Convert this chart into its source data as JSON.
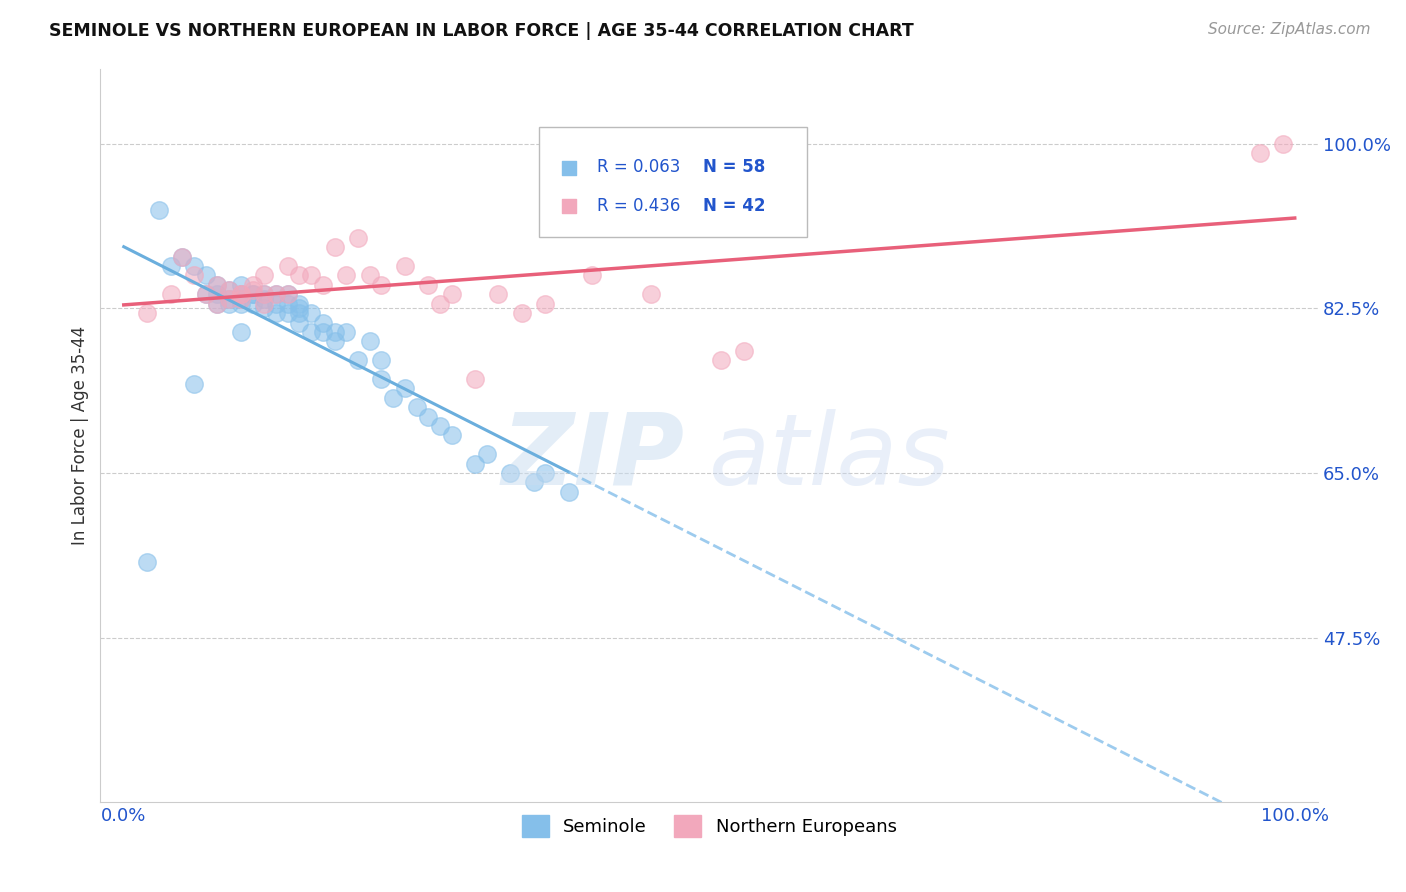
{
  "title": "SEMINOLE VS NORTHERN EUROPEAN IN LABOR FORCE | AGE 35-44 CORRELATION CHART",
  "source": "Source: ZipAtlas.com",
  "ylabel": "In Labor Force | Age 35-44",
  "xlim": [
    -0.02,
    1.02
  ],
  "ylim": [
    0.3,
    1.08
  ],
  "yticks": [
    0.475,
    0.65,
    0.825,
    1.0
  ],
  "ytick_labels": [
    "47.5%",
    "65.0%",
    "82.5%",
    "100.0%"
  ],
  "xtick_vals": [
    0.0,
    1.0
  ],
  "xtick_labels": [
    "0.0%",
    "100.0%"
  ],
  "r1": "0.063",
  "n1": "58",
  "r2": "0.436",
  "n2": "42",
  "blue_color": "#85BFEA",
  "pink_color": "#F2A8BC",
  "trend_blue_solid": "#6AAEDD",
  "trend_blue_dash": "#85BFEA",
  "trend_pink": "#E8607A",
  "blue_x": [
    0.02,
    0.03,
    0.04,
    0.05,
    0.06,
    0.07,
    0.07,
    0.08,
    0.08,
    0.08,
    0.09,
    0.09,
    0.09,
    0.1,
    0.1,
    0.1,
    0.1,
    0.11,
    0.11,
    0.11,
    0.12,
    0.12,
    0.12,
    0.13,
    0.13,
    0.13,
    0.14,
    0.14,
    0.14,
    0.15,
    0.15,
    0.15,
    0.15,
    0.16,
    0.16,
    0.17,
    0.17,
    0.18,
    0.18,
    0.19,
    0.2,
    0.21,
    0.22,
    0.22,
    0.23,
    0.24,
    0.25,
    0.26,
    0.27,
    0.28,
    0.3,
    0.31,
    0.33,
    0.35,
    0.36,
    0.38,
    0.06,
    0.1
  ],
  "blue_y": [
    0.555,
    0.93,
    0.87,
    0.88,
    0.87,
    0.84,
    0.86,
    0.83,
    0.85,
    0.84,
    0.83,
    0.845,
    0.835,
    0.84,
    0.83,
    0.835,
    0.85,
    0.84,
    0.83,
    0.84,
    0.825,
    0.84,
    0.835,
    0.83,
    0.84,
    0.82,
    0.83,
    0.82,
    0.84,
    0.825,
    0.81,
    0.83,
    0.82,
    0.82,
    0.8,
    0.81,
    0.8,
    0.8,
    0.79,
    0.8,
    0.77,
    0.79,
    0.77,
    0.75,
    0.73,
    0.74,
    0.72,
    0.71,
    0.7,
    0.69,
    0.66,
    0.67,
    0.65,
    0.64,
    0.65,
    0.63,
    0.745,
    0.8
  ],
  "pink_x": [
    0.02,
    0.04,
    0.05,
    0.06,
    0.07,
    0.08,
    0.08,
    0.09,
    0.09,
    0.1,
    0.1,
    0.1,
    0.11,
    0.11,
    0.12,
    0.12,
    0.12,
    0.13,
    0.14,
    0.14,
    0.15,
    0.16,
    0.17,
    0.18,
    0.19,
    0.2,
    0.21,
    0.22,
    0.24,
    0.26,
    0.27,
    0.28,
    0.3,
    0.32,
    0.34,
    0.36,
    0.4,
    0.45,
    0.51,
    0.53,
    0.97,
    0.99
  ],
  "pink_y": [
    0.82,
    0.84,
    0.88,
    0.86,
    0.84,
    0.85,
    0.83,
    0.845,
    0.835,
    0.84,
    0.835,
    0.84,
    0.845,
    0.85,
    0.86,
    0.84,
    0.83,
    0.84,
    0.87,
    0.84,
    0.86,
    0.86,
    0.85,
    0.89,
    0.86,
    0.9,
    0.86,
    0.85,
    0.87,
    0.85,
    0.83,
    0.84,
    0.75,
    0.84,
    0.82,
    0.83,
    0.86,
    0.84,
    0.77,
    0.78,
    0.99,
    1.0
  ]
}
